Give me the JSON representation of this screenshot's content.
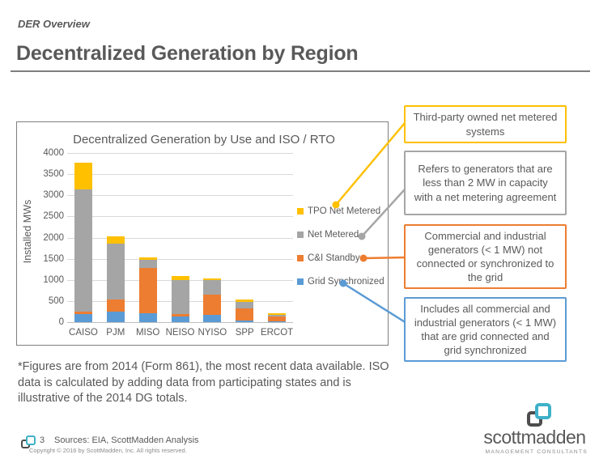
{
  "slide": {
    "kicker": "DER Overview",
    "title": "Decentralized Generation by Region"
  },
  "chart_data": {
    "type": "bar",
    "stacked": true,
    "title": "Decentralized Generation by Use and ISO / RTO",
    "xlabel": "",
    "ylabel": "Installed MWs",
    "ylim": [
      0,
      4000
    ],
    "ytick_step": 500,
    "grid": true,
    "legend_position": "right",
    "categories": [
      "CAISO",
      "PJM",
      "MISO",
      "NEISO",
      "NYISO",
      "SPP",
      "ERCOT"
    ],
    "series": [
      {
        "name": "Grid Synchronized",
        "color": "#5b9bd5",
        "values": [
          200,
          250,
          210,
          130,
          180,
          40,
          25
        ]
      },
      {
        "name": "C&I Standby",
        "color": "#ed7d31",
        "values": [
          50,
          290,
          1070,
          60,
          470,
          290,
          105
        ]
      },
      {
        "name": "Net Metered",
        "color": "#a5a5a5",
        "values": [
          2890,
          1310,
          200,
          800,
          340,
          150,
          50
        ]
      },
      {
        "name": "TPO Net Metered",
        "color": "#ffc000",
        "values": [
          640,
          180,
          60,
          100,
          40,
          60,
          35
        ]
      }
    ],
    "stack_totals": [
      3780,
      2030,
      1540,
      1090,
      1030,
      540,
      215
    ]
  },
  "callouts": [
    {
      "text": "Third-party owned net metered systems",
      "color": "#ffc000"
    },
    {
      "text": "Refers to generators that are less than 2 MW in capacity with a net metering agreement",
      "color": "#a6a6a6"
    },
    {
      "text": "Commercial and industrial generators (< 1 MW) not connected or synchronized to the grid",
      "color": "#ed7d31"
    },
    {
      "text": "Includes all commercial and industrial generators (< 1 MW) that are grid connected and grid synchronized",
      "color": "#5b9bd5"
    }
  ],
  "footnote": "*Figures are from 2014 (Form 861), the most recent data available. ISO data is calculated by adding data from participating states and is illustrative of the 2014 DG totals.",
  "footer": {
    "page_number": "3",
    "sources": "Sources: EIA, ScottMadden Analysis",
    "copyright": "Copyright © 2016 by ScottMadden, Inc. All rights reserved.",
    "brand_name": "scottmadden",
    "brand_subtext": "MANAGEMENT CONSULTANTS"
  },
  "colors": {
    "text": "#595959",
    "rule": "#7f7f7f",
    "gridline": "#d9d9d9",
    "brand_teal": "#3eb1c8",
    "brand_dark": "#4d4d4d"
  }
}
